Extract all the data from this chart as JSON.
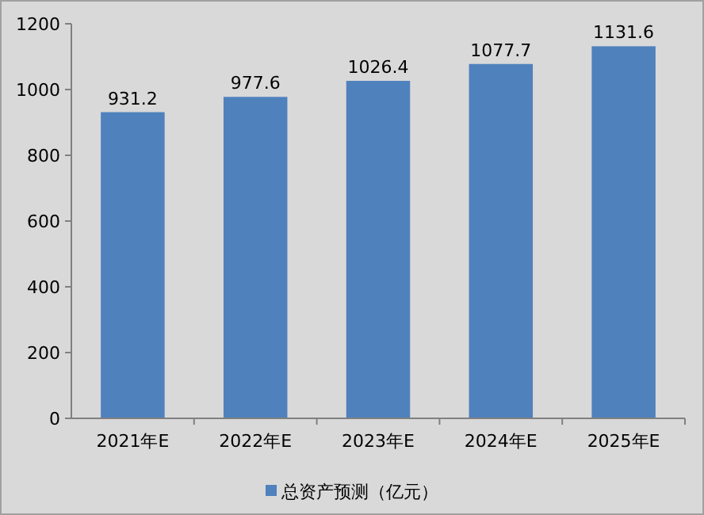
{
  "chart_data": {
    "type": "bar",
    "categories": [
      "2021年E",
      "2022年E",
      "2023年E",
      "2024年E",
      "2025年E"
    ],
    "series": [
      {
        "name": "总资产预测（亿元）",
        "color": "#4f81bd",
        "values": [
          931.2,
          977.6,
          1026.4,
          1077.7,
          1131.6
        ]
      }
    ],
    "ylim": [
      0,
      1200
    ],
    "yticks": [
      0,
      200,
      400,
      600,
      800,
      1000,
      1200
    ],
    "data_labels": true,
    "legend": "bottom"
  }
}
